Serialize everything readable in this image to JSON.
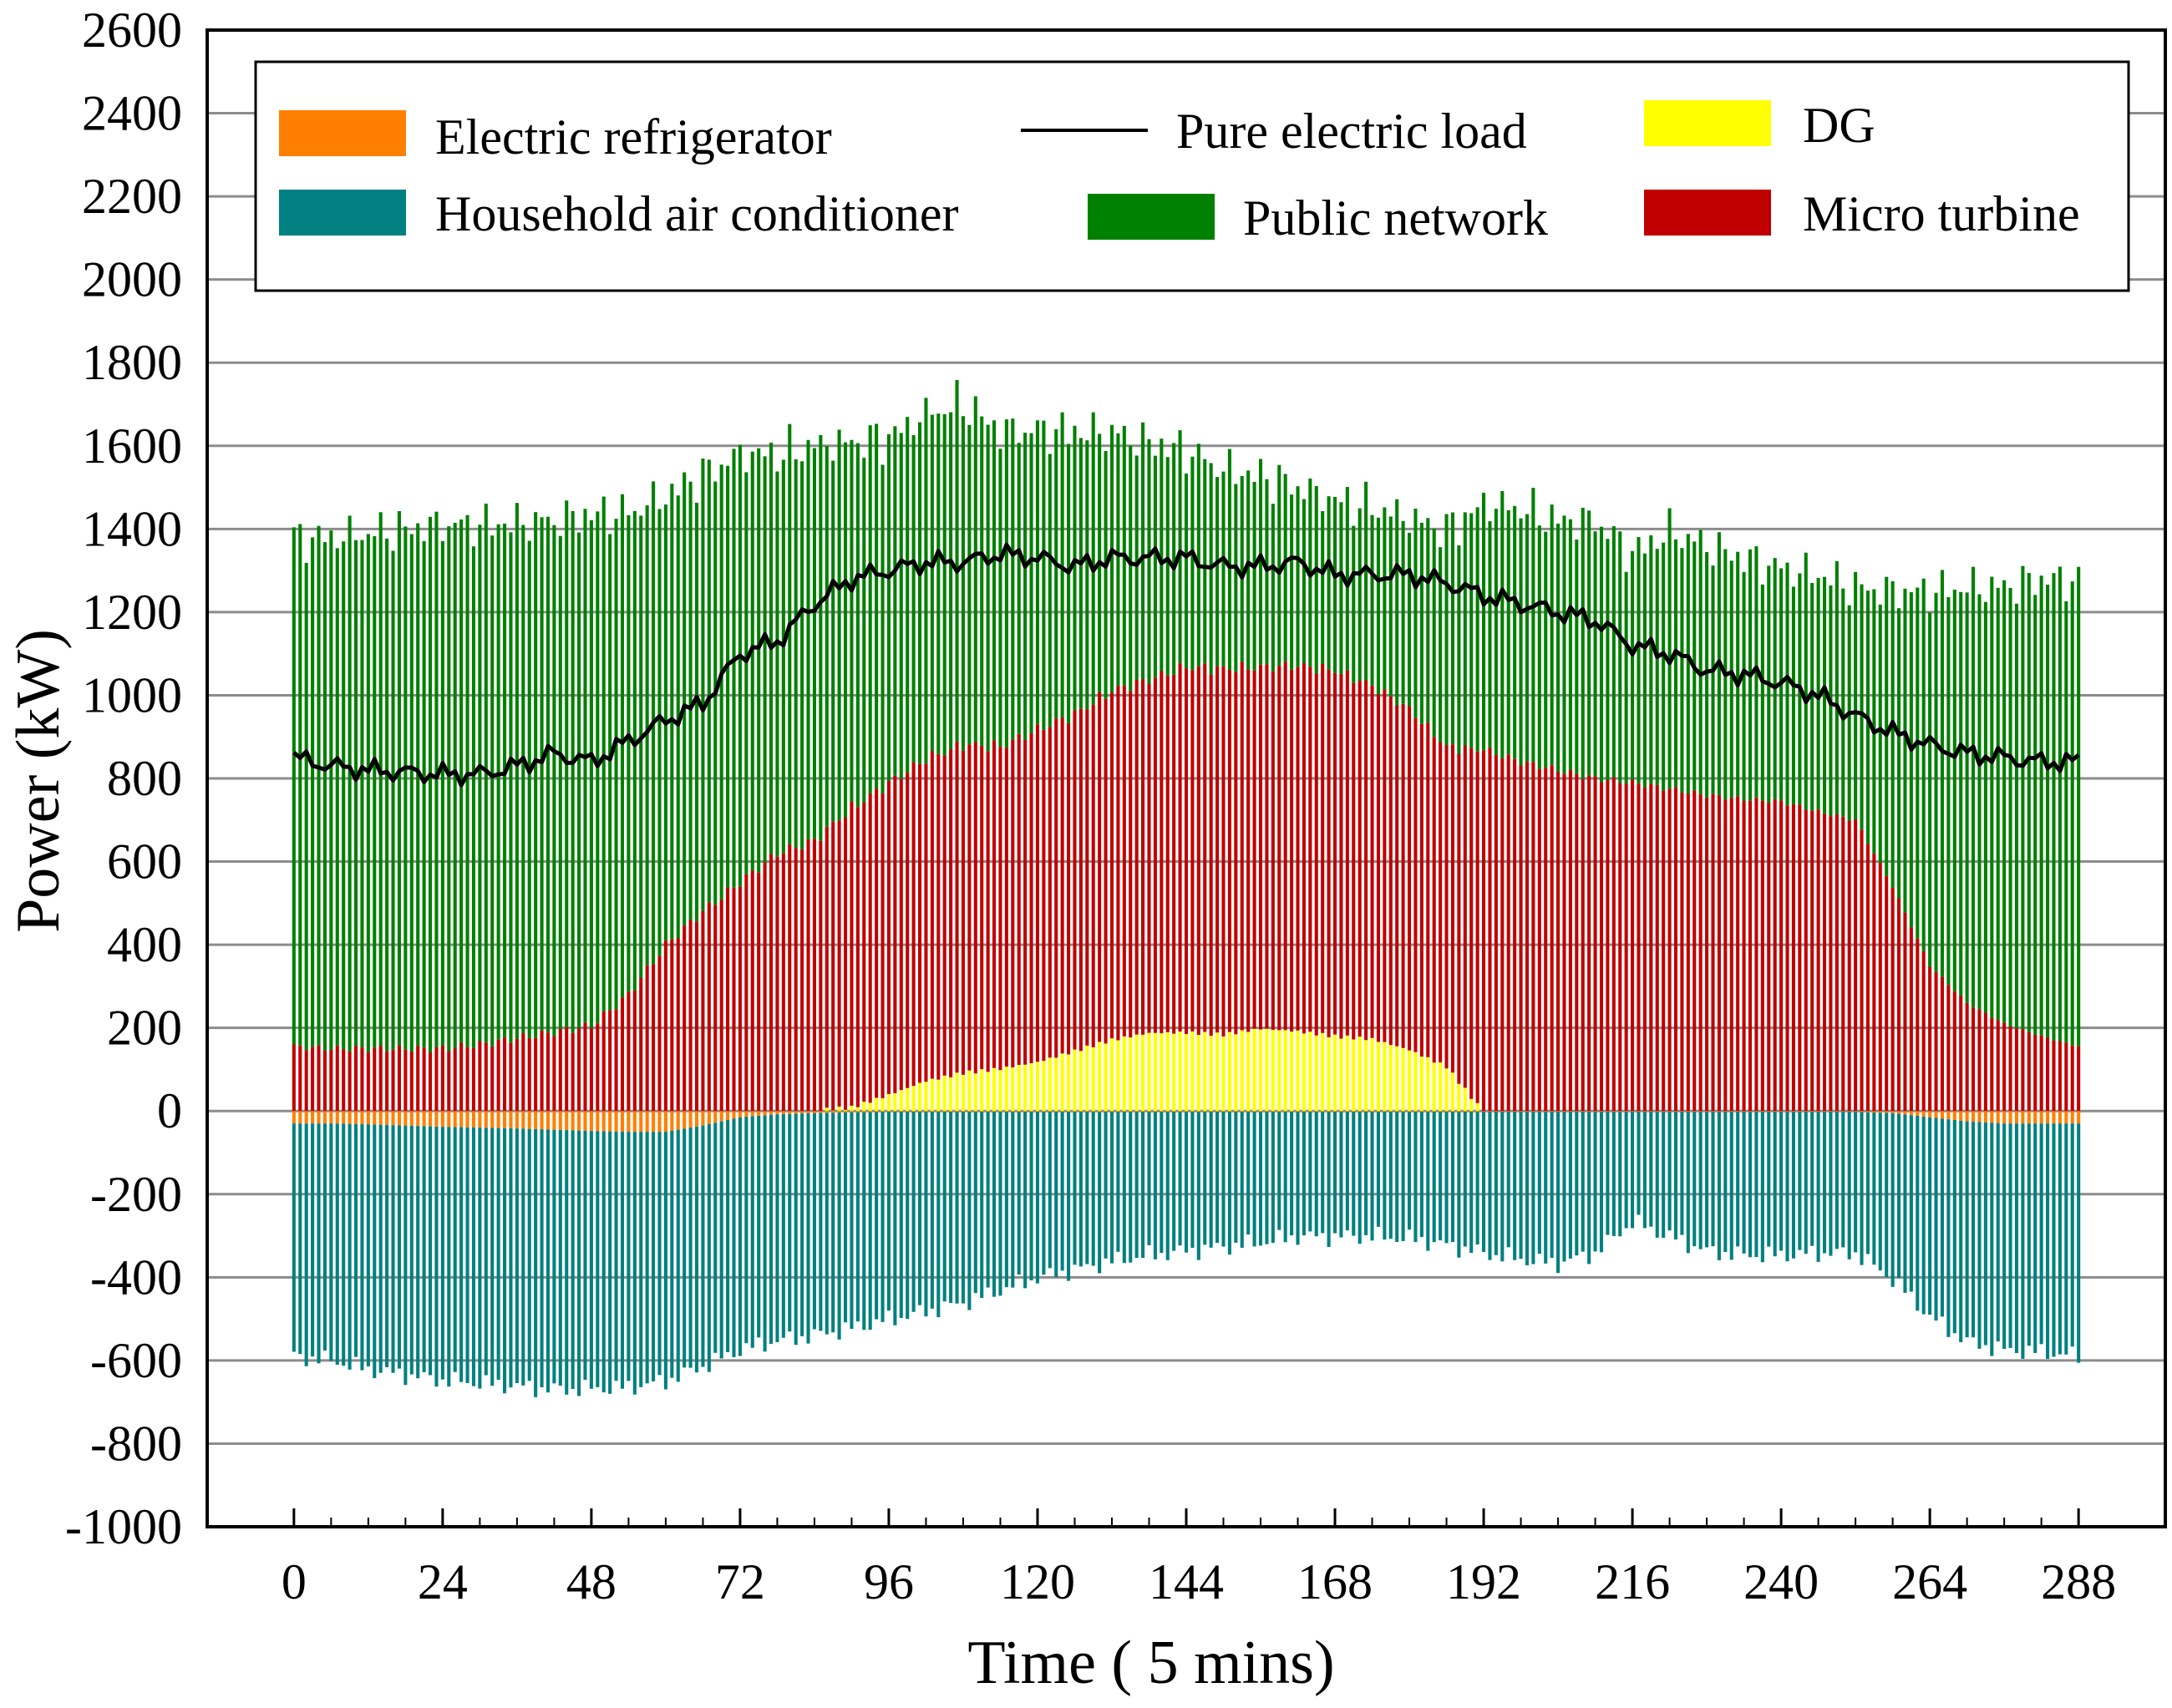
{
  "chart_data": {
    "type": "bar",
    "subtype": "stacked-bar-with-line",
    "title": "",
    "xlabel": "Time ( 5 mins)",
    "ylabel": "Power (kW)",
    "xlim": [
      -14,
      302
    ],
    "ylim": [
      -1000,
      2600
    ],
    "x_ticks": [
      0,
      24,
      48,
      72,
      96,
      120,
      144,
      168,
      192,
      216,
      240,
      264,
      288
    ],
    "x_tick_labels": [
      "0",
      "24",
      "48",
      "72",
      "96",
      "120",
      "144",
      "168",
      "192",
      "216",
      "240",
      "264",
      "288"
    ],
    "y_ticks": [
      -1000,
      -800,
      -600,
      -400,
      -200,
      0,
      200,
      400,
      600,
      800,
      1000,
      1200,
      1400,
      1600,
      1800,
      2000,
      2200,
      2400,
      2600
    ],
    "y_tick_labels": [
      "-1000",
      "-800",
      "-600",
      "-400",
      "-200",
      "0",
      "200",
      "400",
      "600",
      "800",
      "1000",
      "1200",
      "1400",
      "1600",
      "1800",
      "2000",
      "2200",
      "2400",
      "2600"
    ],
    "grid": "horizontal",
    "legend_position": "top",
    "sample_times": [
      0,
      6,
      12,
      18,
      24,
      30,
      36,
      42,
      48,
      54,
      60,
      66,
      72,
      78,
      84,
      90,
      96,
      102,
      108,
      114,
      120,
      126,
      132,
      138,
      144,
      150,
      156,
      162,
      168,
      174,
      180,
      186,
      192,
      198,
      204,
      210,
      216,
      222,
      228,
      234,
      240,
      246,
      252,
      258,
      264,
      270,
      276,
      282,
      288
    ],
    "series": [
      {
        "name": "Electric refrigerator",
        "kind": "bar-negative",
        "color": "#ff8000",
        "values": [
          -30,
          -30,
          -32,
          -35,
          -38,
          -40,
          -42,
          -45,
          -48,
          -50,
          -50,
          -35,
          -15,
          -8,
          -5,
          -3,
          -2,
          -2,
          -2,
          -2,
          -2,
          -2,
          -2,
          -2,
          -2,
          -2,
          -2,
          -2,
          -2,
          -2,
          -2,
          -2,
          -2,
          -2,
          -2,
          -2,
          -2,
          -2,
          -2,
          -2,
          -2,
          -2,
          -2,
          -5,
          -15,
          -25,
          -30,
          -30,
          -30
        ]
      },
      {
        "name": "Household air conditioner",
        "kind": "bar-negative",
        "color": "#008080",
        "values": [
          -560,
          -570,
          -590,
          -600,
          -610,
          -615,
          -620,
          -625,
          -620,
          -615,
          -600,
          -580,
          -560,
          -545,
          -535,
          -520,
          -500,
          -480,
          -460,
          -430,
          -400,
          -380,
          -360,
          -345,
          -335,
          -325,
          -315,
          -300,
          -300,
          -300,
          -305,
          -320,
          -340,
          -355,
          -365,
          -340,
          -265,
          -300,
          -335,
          -345,
          -345,
          -340,
          -340,
          -400,
          -480,
          -530,
          -545,
          -550,
          -560
        ]
      },
      {
        "name": "DG",
        "kind": "bar-positive",
        "color": "#ffff00",
        "values": [
          0,
          0,
          0,
          0,
          0,
          0,
          0,
          0,
          0,
          0,
          0,
          0,
          0,
          0,
          0,
          8,
          40,
          75,
          95,
          105,
          120,
          145,
          170,
          185,
          185,
          180,
          195,
          190,
          180,
          175,
          150,
          110,
          0,
          0,
          0,
          0,
          0,
          0,
          0,
          0,
          0,
          0,
          0,
          0,
          0,
          0,
          0,
          0,
          0
        ]
      },
      {
        "name": "Micro turbine",
        "kind": "bar-positive",
        "color": "#c00000",
        "values": [
          155,
          150,
          150,
          150,
          150,
          160,
          175,
          190,
          205,
          280,
          400,
          480,
          550,
          620,
          650,
          720,
          750,
          775,
          790,
          775,
          800,
          810,
          840,
          850,
          880,
          880,
          870,
          880,
          880,
          850,
          820,
          770,
          870,
          840,
          820,
          800,
          790,
          775,
          760,
          750,
          745,
          720,
          700,
          540,
          350,
          260,
          210,
          180,
          155
        ]
      },
      {
        "name": "Public network",
        "kind": "bar-positive",
        "color": "#008000",
        "values": [
          1220,
          1230,
          1240,
          1250,
          1260,
          1250,
          1240,
          1230,
          1230,
          1160,
          1080,
          1050,
          1030,
          960,
          950,
          880,
          830,
          830,
          820,
          760,
          720,
          680,
          620,
          570,
          520,
          480,
          460,
          430,
          410,
          430,
          460,
          520,
          590,
          610,
          600,
          620,
          550,
          620,
          600,
          580,
          560,
          570,
          560,
          710,
          900,
          1000,
          1050,
          1100,
          1120
        ]
      },
      {
        "name": "Pure electric load",
        "kind": "line",
        "color": "#000000",
        "values": [
          850,
          830,
          820,
          815,
          810,
          810,
          830,
          860,
          840,
          890,
          940,
          980,
          1100,
          1130,
          1220,
          1280,
          1300,
          1320,
          1320,
          1340,
          1330,
          1310,
          1330,
          1330,
          1330,
          1310,
          1310,
          1320,
          1290,
          1290,
          1290,
          1270,
          1240,
          1220,
          1200,
          1180,
          1120,
          1100,
          1060,
          1050,
          1030,
          1000,
          950,
          910,
          880,
          860,
          850,
          840,
          840
        ]
      }
    ]
  },
  "legend": {
    "items": [
      {
        "label": "Electric refrigerator",
        "color": "#ff8000",
        "kind": "swatch"
      },
      {
        "label": "Pure electric load",
        "color": "#000000",
        "kind": "line"
      },
      {
        "label": "DG",
        "color": "#ffff00",
        "kind": "swatch"
      },
      {
        "label": "Household air conditioner",
        "color": "#008080",
        "kind": "swatch"
      },
      {
        "label": "Public network",
        "color": "#008000",
        "kind": "swatch"
      },
      {
        "label": "Micro turbine",
        "color": "#c00000",
        "kind": "swatch"
      }
    ]
  }
}
